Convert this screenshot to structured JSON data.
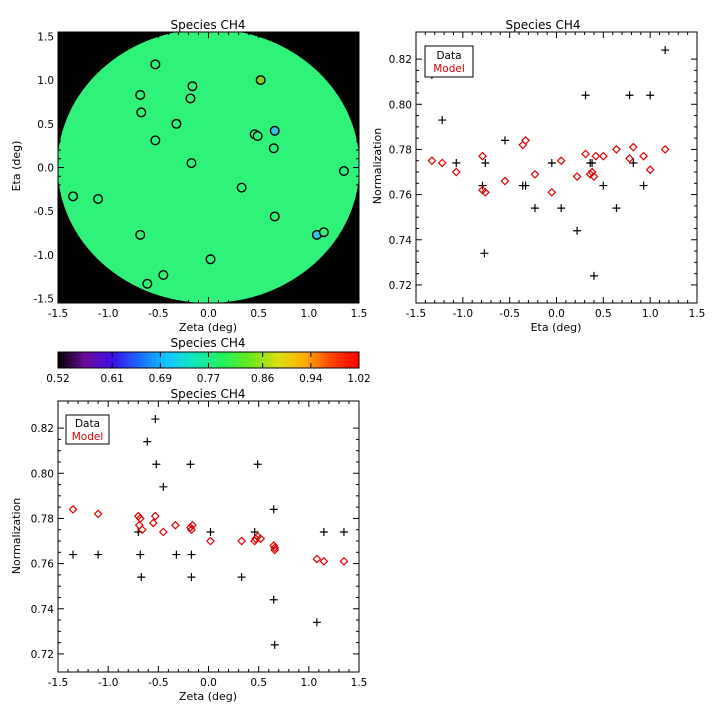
{
  "colors": {
    "plot_bg": "#000000",
    "data_marker": "#000000",
    "model_marker": "#e00000",
    "map_fill": "#2ef27a"
  },
  "chart_data": [
    {
      "id": "map",
      "type": "scatter",
      "title": "Species CH4",
      "xlabel": "Zeta (deg)",
      "ylabel": "Eta (deg)",
      "xlim": [
        -1.5,
        1.5
      ],
      "ylim": [
        -1.55,
        1.55
      ],
      "xticks": [
        "-1.5",
        "-1.0",
        "-0.5",
        "0.0",
        "0.5",
        "1.0",
        "1.5"
      ],
      "yticks": [
        "-1.5",
        "-1.0",
        "-0.5",
        "0.0",
        "0.5",
        "1.0",
        "1.5"
      ],
      "points": [
        {
          "x": -0.53,
          "y": 1.18,
          "c": "#2ef27a"
        },
        {
          "x": 0.52,
          "y": 1.0,
          "c": "#7cd21e"
        },
        {
          "x": -0.16,
          "y": 0.93,
          "c": "#2ef27a"
        },
        {
          "x": -0.68,
          "y": 0.83,
          "c": "#2ef27a"
        },
        {
          "x": -0.18,
          "y": 0.79,
          "c": "#2ef27a"
        },
        {
          "x": -0.67,
          "y": 0.63,
          "c": "#2ef27a"
        },
        {
          "x": -0.32,
          "y": 0.5,
          "c": "#2ef27a"
        },
        {
          "x": 0.66,
          "y": 0.42,
          "c": "#2fc4e8"
        },
        {
          "x": 0.46,
          "y": 0.38,
          "c": "#2ef27a"
        },
        {
          "x": 0.49,
          "y": 0.36,
          "c": "#2ef27a"
        },
        {
          "x": -0.53,
          "y": 0.31,
          "c": "#2ef27a"
        },
        {
          "x": 0.65,
          "y": 0.22,
          "c": "#2ef27a"
        },
        {
          "x": -0.17,
          "y": 0.05,
          "c": "#2ef27a"
        },
        {
          "x": 1.35,
          "y": -0.04,
          "c": "#2ef27a"
        },
        {
          "x": 0.33,
          "y": -0.23,
          "c": "#2ef27a"
        },
        {
          "x": -1.35,
          "y": -0.33,
          "c": "#2ef27a"
        },
        {
          "x": -1.1,
          "y": -0.36,
          "c": "#2ef27a"
        },
        {
          "x": 0.66,
          "y": -0.56,
          "c": "#2ef27a"
        },
        {
          "x": 1.08,
          "y": -0.77,
          "c": "#2fc4e8"
        },
        {
          "x": 1.15,
          "y": -0.74,
          "c": "#2ef27a"
        },
        {
          "x": -0.68,
          "y": -0.77,
          "c": "#2ef27a"
        },
        {
          "x": 0.02,
          "y": -1.05,
          "c": "#2ef27a"
        },
        {
          "x": -0.45,
          "y": -1.23,
          "c": "#2ef27a"
        },
        {
          "x": -0.61,
          "y": -1.33,
          "c": "#2ef27a"
        }
      ]
    },
    {
      "id": "colorbar",
      "type": "heatmap",
      "title": "Species CH4",
      "ticks": [
        "0.52",
        "0.61",
        "0.69",
        "0.77",
        "0.86",
        "0.94",
        "1.02"
      ],
      "range": [
        0.52,
        1.02
      ],
      "colormap": [
        "#000000",
        "#6a0a9c",
        "#3a10e8",
        "#1a6cff",
        "#12c8ff",
        "#12e8b8",
        "#1ef060",
        "#6ae818",
        "#d8e010",
        "#ffb000",
        "#ff4000",
        "#ff0000"
      ]
    },
    {
      "id": "eta-plot",
      "type": "scatter",
      "title": "Species CH4",
      "xlabel": "Eta (deg)",
      "ylabel": "Normalization",
      "xlim": [
        -1.5,
        1.5
      ],
      "ylim": [
        0.712,
        0.832
      ],
      "xticks": [
        "-1.5",
        "-1.0",
        "-0.5",
        "0.0",
        "0.5",
        "1.0",
        "1.5"
      ],
      "yticks": [
        "0.72",
        "0.74",
        "0.76",
        "0.78",
        "0.80",
        "0.82"
      ],
      "legend": {
        "position": "top-left",
        "items": [
          "Data",
          "Model"
        ]
      },
      "series": [
        {
          "name": "Data",
          "marker": "plus",
          "points": [
            [
              -1.33,
              0.813
            ],
            [
              -1.22,
              0.793
            ],
            [
              -1.07,
              0.774
            ],
            [
              -0.79,
              0.764
            ],
            [
              -0.77,
              0.734
            ],
            [
              -0.76,
              0.774
            ],
            [
              -0.55,
              0.784
            ],
            [
              -0.36,
              0.764
            ],
            [
              -0.33,
              0.764
            ],
            [
              -0.23,
              0.754
            ],
            [
              -0.05,
              0.774
            ],
            [
              0.05,
              0.754
            ],
            [
              0.22,
              0.744
            ],
            [
              0.31,
              0.804
            ],
            [
              0.36,
              0.774
            ],
            [
              0.38,
              0.774
            ],
            [
              0.4,
              0.724
            ],
            [
              0.5,
              0.764
            ],
            [
              0.64,
              0.754
            ],
            [
              0.78,
              0.804
            ],
            [
              0.82,
              0.774
            ],
            [
              0.93,
              0.764
            ],
            [
              1.0,
              0.804
            ],
            [
              1.16,
              0.824
            ]
          ]
        },
        {
          "name": "Model",
          "marker": "diamond",
          "points": [
            [
              -1.33,
              0.775
            ],
            [
              -1.22,
              0.774
            ],
            [
              -1.07,
              0.77
            ],
            [
              -0.79,
              0.777
            ],
            [
              -0.79,
              0.762
            ],
            [
              -0.76,
              0.761
            ],
            [
              -0.55,
              0.766
            ],
            [
              -0.36,
              0.782
            ],
            [
              -0.33,
              0.784
            ],
            [
              -0.23,
              0.769
            ],
            [
              -0.05,
              0.761
            ],
            [
              0.05,
              0.775
            ],
            [
              0.22,
              0.768
            ],
            [
              0.31,
              0.778
            ],
            [
              0.36,
              0.769
            ],
            [
              0.38,
              0.77
            ],
            [
              0.4,
              0.768
            ],
            [
              0.42,
              0.777
            ],
            [
              0.5,
              0.777
            ],
            [
              0.64,
              0.78
            ],
            [
              0.78,
              0.776
            ],
            [
              0.82,
              0.781
            ],
            [
              0.93,
              0.777
            ],
            [
              1.0,
              0.771
            ],
            [
              1.16,
              0.78
            ]
          ]
        }
      ]
    },
    {
      "id": "zeta-plot",
      "type": "scatter",
      "title": "Species CH4",
      "xlabel": "Zeta (deg)",
      "ylabel": "Normalization",
      "xlim": [
        -1.5,
        1.5
      ],
      "ylim": [
        0.712,
        0.832
      ],
      "xticks": [
        "-1.5",
        "-1.0",
        "-0.5",
        "0.0",
        "0.5",
        "1.0",
        "1.5"
      ],
      "yticks": [
        "0.72",
        "0.74",
        "0.76",
        "0.78",
        "0.80",
        "0.82"
      ],
      "legend": {
        "position": "top-left",
        "items": [
          "Data",
          "Model"
        ]
      },
      "series": [
        {
          "name": "Data",
          "marker": "plus",
          "points": [
            [
              -1.35,
              0.764
            ],
            [
              -1.1,
              0.764
            ],
            [
              -0.7,
              0.774
            ],
            [
              -0.68,
              0.764
            ],
            [
              -0.67,
              0.754
            ],
            [
              -0.61,
              0.814
            ],
            [
              -0.53,
              0.824
            ],
            [
              -0.52,
              0.804
            ],
            [
              -0.45,
              0.794
            ],
            [
              -0.32,
              0.764
            ],
            [
              -0.18,
              0.804
            ],
            [
              -0.17,
              0.764
            ],
            [
              -0.17,
              0.754
            ],
            [
              0.02,
              0.774
            ],
            [
              0.33,
              0.754
            ],
            [
              0.46,
              0.774
            ],
            [
              0.49,
              0.804
            ],
            [
              0.65,
              0.784
            ],
            [
              0.65,
              0.744
            ],
            [
              0.66,
              0.724
            ],
            [
              1.08,
              0.734
            ],
            [
              1.15,
              0.774
            ],
            [
              1.35,
              0.774
            ]
          ]
        },
        {
          "name": "Model",
          "marker": "diamond",
          "points": [
            [
              -1.35,
              0.784
            ],
            [
              -1.1,
              0.782
            ],
            [
              -0.7,
              0.781
            ],
            [
              -0.69,
              0.777
            ],
            [
              -0.68,
              0.78
            ],
            [
              -0.66,
              0.775
            ],
            [
              -0.55,
              0.778
            ],
            [
              -0.53,
              0.781
            ],
            [
              -0.45,
              0.774
            ],
            [
              -0.33,
              0.777
            ],
            [
              -0.18,
              0.776
            ],
            [
              -0.17,
              0.775
            ],
            [
              -0.16,
              0.777
            ],
            [
              0.02,
              0.77
            ],
            [
              0.33,
              0.77
            ],
            [
              0.46,
              0.77
            ],
            [
              0.47,
              0.771
            ],
            [
              0.49,
              0.772
            ],
            [
              0.52,
              0.771
            ],
            [
              0.65,
              0.768
            ],
            [
              0.66,
              0.767
            ],
            [
              0.66,
              0.766
            ],
            [
              1.08,
              0.762
            ],
            [
              1.15,
              0.761
            ],
            [
              1.35,
              0.761
            ]
          ]
        }
      ]
    }
  ]
}
